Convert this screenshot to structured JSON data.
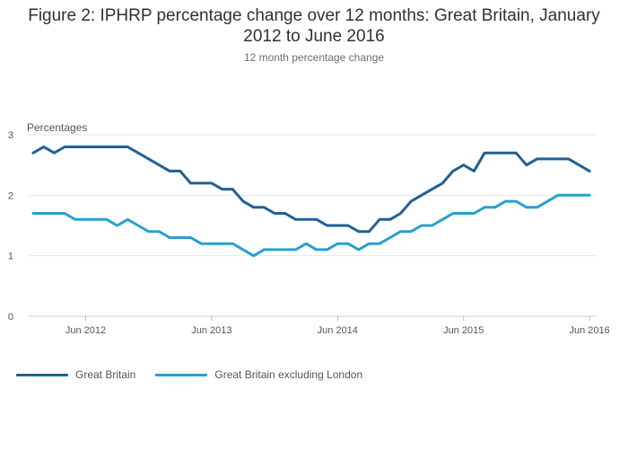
{
  "chart_data": {
    "type": "line",
    "title": "Figure 2: IPHRP percentage change over 12 months: Great Britain, January 2012 to June 2016",
    "title_lines": [
      "Figure 2: IPHRP percentage change over 12 months: Great Britain, January",
      "2012 to June 2016"
    ],
    "subtitle": "12 month percentage change",
    "ylabel": "Percentages",
    "xlabel": "",
    "ylim": [
      0,
      3
    ],
    "yticks": [
      0,
      1,
      2,
      3
    ],
    "x_start": "Jan 2012",
    "x_end": "Jun 2016",
    "xtick_labels": [
      "Jun 2012",
      "Jun 2013",
      "Jun 2014",
      "Jun 2015",
      "Jun 2016"
    ],
    "xtick_month_index": [
      5,
      17,
      29,
      41,
      53
    ],
    "grid": true,
    "legend_position": "bottom-left",
    "series": [
      {
        "name": "Great Britain",
        "color": "#206095",
        "values": [
          2.7,
          2.8,
          2.7,
          2.8,
          2.8,
          2.8,
          2.8,
          2.8,
          2.8,
          2.8,
          2.7,
          2.6,
          2.5,
          2.4,
          2.4,
          2.2,
          2.2,
          2.2,
          2.1,
          2.1,
          1.9,
          1.8,
          1.8,
          1.7,
          1.7,
          1.6,
          1.6,
          1.6,
          1.5,
          1.5,
          1.5,
          1.4,
          1.4,
          1.6,
          1.6,
          1.7,
          1.9,
          2.0,
          2.1,
          2.2,
          2.4,
          2.5,
          2.4,
          2.7,
          2.7,
          2.7,
          2.7,
          2.5,
          2.6,
          2.6,
          2.6,
          2.6,
          2.5,
          2.4
        ]
      },
      {
        "name": "Great Britain excluding London",
        "color": "#27a0cc",
        "values": [
          1.7,
          1.7,
          1.7,
          1.7,
          1.6,
          1.6,
          1.6,
          1.6,
          1.5,
          1.6,
          1.5,
          1.4,
          1.4,
          1.3,
          1.3,
          1.3,
          1.2,
          1.2,
          1.2,
          1.2,
          1.1,
          1.0,
          1.1,
          1.1,
          1.1,
          1.1,
          1.2,
          1.1,
          1.1,
          1.2,
          1.2,
          1.1,
          1.2,
          1.2,
          1.3,
          1.4,
          1.4,
          1.5,
          1.5,
          1.6,
          1.7,
          1.7,
          1.7,
          1.8,
          1.8,
          1.9,
          1.9,
          1.8,
          1.8,
          1.9,
          2.0,
          2.0,
          2.0,
          2.0
        ]
      }
    ]
  }
}
